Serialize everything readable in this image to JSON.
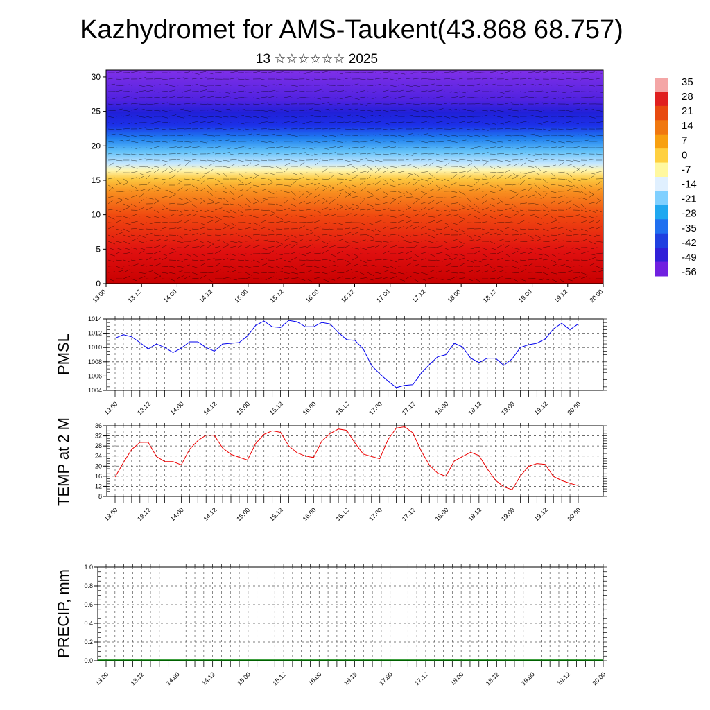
{
  "title": "Kazhydromet for AMS-Taukent(43.868 68.757)",
  "subtitle": "13 ☆☆☆☆☆☆ 2025",
  "colors": {
    "pmsl_line": "#0000ee",
    "temp_line": "#ee0000",
    "precip_line": "#008000",
    "grid": "#555555"
  },
  "chart_data": [
    {
      "type": "heatmap",
      "name": "cross-section",
      "x_ticks": [
        "13.00",
        "13.12",
        "14.00",
        "14.12",
        "15.00",
        "15.12",
        "16.00",
        "16.12",
        "17.00",
        "17.12",
        "18.00",
        "18.12",
        "19.00",
        "19.12",
        "20.00"
      ],
      "y_ticks": [
        "0",
        "5",
        "10",
        "15",
        "20",
        "25",
        "30"
      ],
      "ylim": [
        0,
        31
      ],
      "colorbar": {
        "labels": [
          "35",
          "28",
          "21",
          "14",
          "7",
          "0",
          "-7",
          "-14",
          "-21",
          "-28",
          "-35",
          "-42",
          "-49",
          "-56"
        ],
        "colors": [
          "#f4a6a6",
          "#e02020",
          "#e84a10",
          "#f07810",
          "#f8a010",
          "#ffd040",
          "#fff8a0",
          "#e0f0ff",
          "#80d0ff",
          "#20a8f0",
          "#2070f0",
          "#2040e0",
          "#3020d8",
          "#7020e0"
        ]
      },
      "overlay": "wind vectors"
    },
    {
      "type": "line",
      "ylabel": "PMSL",
      "x_ticks": [
        "13.00",
        "13.12",
        "14.00",
        "14.12",
        "15.00",
        "15.12",
        "16.00",
        "16.12",
        "17.00",
        "17.12",
        "18.00",
        "18.12",
        "19.00",
        "19.12",
        "20.00"
      ],
      "y_ticks": [
        "1004",
        "1006",
        "1008",
        "1010",
        "1012",
        "1014"
      ],
      "ylim": [
        1004,
        1014
      ],
      "x_hours": [
        0,
        3,
        6,
        9,
        12,
        15,
        18,
        21,
        24,
        27,
        30,
        33,
        36,
        39,
        42,
        45,
        48,
        51,
        54,
        57,
        60,
        63,
        66,
        69,
        72,
        75,
        78,
        81,
        84,
        87,
        90,
        93,
        96,
        99,
        102,
        105,
        108,
        111,
        114,
        117,
        120,
        123,
        126,
        129,
        132,
        135,
        138,
        141,
        144,
        147,
        150,
        153,
        156,
        159,
        162,
        165,
        168
      ],
      "values": [
        1011.3,
        1011.8,
        1011.5,
        1010.7,
        1009.8,
        1010.5,
        1010.0,
        1009.3,
        1009.9,
        1010.8,
        1010.8,
        1010.0,
        1009.5,
        1010.5,
        1010.6,
        1010.7,
        1011.6,
        1013.1,
        1013.7,
        1012.9,
        1012.8,
        1013.8,
        1013.6,
        1012.9,
        1012.9,
        1013.5,
        1013.3,
        1012.1,
        1011.1,
        1011.0,
        1009.8,
        1007.5,
        1006.3,
        1005.3,
        1004.4,
        1004.7,
        1004.8,
        1006.4,
        1007.6,
        1008.7,
        1009.0,
        1010.6,
        1010.1,
        1008.5,
        1007.9,
        1008.5,
        1008.5,
        1007.5,
        1008.4,
        1010.0,
        1010.4,
        1010.6,
        1011.2,
        1012.6,
        1013.4,
        1012.5,
        1013.3
      ]
    },
    {
      "type": "line",
      "ylabel": "TEMP at 2 M",
      "x_ticks": [
        "13.00",
        "13.12",
        "14.00",
        "14.12",
        "15.00",
        "15.12",
        "16.00",
        "16.12",
        "17.00",
        "17.12",
        "18.00",
        "18.12",
        "19.00",
        "19.12",
        "20.00"
      ],
      "y_ticks": [
        "8",
        "12",
        "16",
        "20",
        "24",
        "28",
        "32",
        "36"
      ],
      "ylim": [
        8,
        36
      ],
      "x_hours": [
        0,
        3,
        6,
        9,
        12,
        15,
        18,
        21,
        24,
        27,
        30,
        33,
        36,
        39,
        42,
        45,
        48,
        51,
        54,
        57,
        60,
        63,
        66,
        69,
        72,
        75,
        78,
        81,
        84,
        87,
        90,
        93,
        96,
        99,
        102,
        105,
        108,
        111,
        114,
        117,
        120,
        123,
        126,
        129,
        132,
        135,
        138,
        141,
        144,
        147,
        150,
        153,
        156,
        159,
        162,
        165,
        168
      ],
      "values": [
        15.7,
        21.4,
        26.6,
        29.4,
        29.5,
        23.8,
        21.8,
        21.8,
        20.5,
        26.7,
        30.1,
        32.3,
        32.2,
        27.2,
        24.7,
        23.5,
        22.4,
        29.0,
        32.6,
        34.0,
        33.4,
        28.0,
        25.3,
        24.0,
        23.4,
        30.0,
        32.9,
        34.7,
        34.2,
        29.2,
        24.8,
        23.8,
        22.9,
        30.5,
        35.1,
        35.6,
        33.2,
        26.1,
        20.4,
        17.2,
        16.0,
        22.0,
        23.8,
        25.5,
        24.2,
        18.9,
        14.4,
        11.8,
        10.7,
        16.1,
        19.9,
        21.0,
        20.7,
        15.9,
        14.3,
        13.2,
        12.3
      ]
    },
    {
      "type": "line",
      "ylabel": "PRECIP, mm",
      "x_ticks": [
        "13.00",
        "13.12",
        "14.00",
        "14.12",
        "15.00",
        "15.12",
        "16.00",
        "16.12",
        "17.00",
        "17.12",
        "18.00",
        "18.12",
        "19.00",
        "19.12",
        "20.00"
      ],
      "y_ticks": [
        "0.0",
        "0.2",
        "0.4",
        "0.6",
        "0.8",
        "1.0"
      ],
      "ylim": [
        0,
        1
      ],
      "values": [
        0,
        0
      ]
    }
  ]
}
